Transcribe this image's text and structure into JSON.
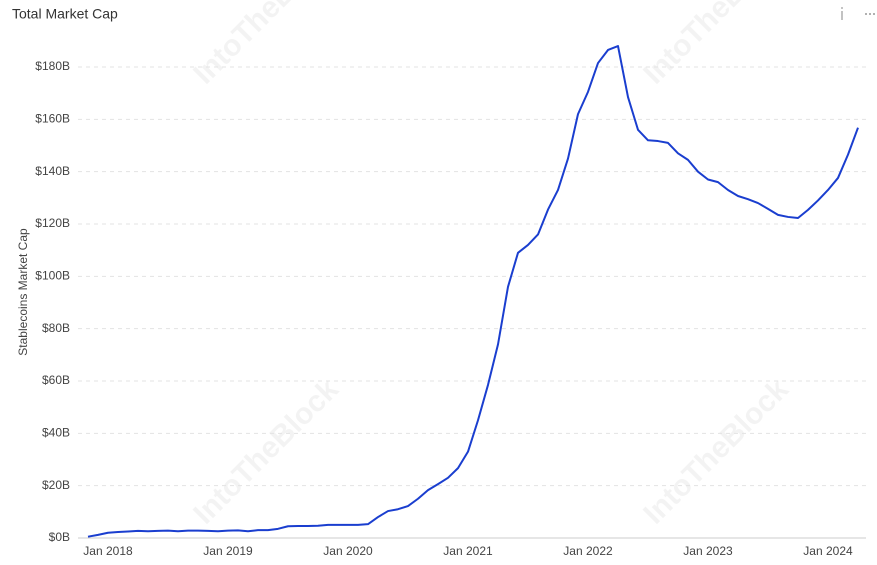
{
  "chart_data": {
    "type": "line",
    "title": "Total Market Cap",
    "y_label": "Stablecoins Market Cap",
    "watermark": "IntoTheBlock",
    "categories": [
      null,
      null,
      "Jan 2018",
      null,
      null,
      null,
      null,
      null,
      null,
      null,
      null,
      null,
      null,
      null,
      "Jan 2019",
      null,
      null,
      null,
      null,
      null,
      null,
      null,
      null,
      null,
      null,
      null,
      "Jan 2020",
      null,
      null,
      null,
      null,
      null,
      null,
      null,
      null,
      null,
      null,
      null,
      "Jan 2021",
      null,
      null,
      null,
      null,
      null,
      null,
      null,
      null,
      null,
      null,
      null,
      "Jan 2022",
      null,
      null,
      null,
      null,
      null,
      null,
      null,
      null,
      null,
      null,
      null,
      "Jan 2023",
      null,
      null,
      null,
      null,
      null,
      null,
      null,
      null,
      null,
      null,
      null,
      "Jan 2024",
      null,
      null,
      null
    ],
    "series": [
      {
        "name": "Stablecoins Market Cap",
        "color": "#1a3ecf",
        "values": [
          0.5,
          1.2,
          2,
          2.3,
          2.5,
          2.7,
          2.6,
          2.7,
          2.8,
          2.6,
          2.8,
          2.8,
          2.7,
          2.6,
          2.8,
          2.9,
          2.6,
          3,
          3,
          3.5,
          4.5,
          4.6,
          4.6,
          4.7,
          5,
          5,
          5,
          5,
          5.3,
          8,
          10.3,
          11,
          12.2,
          15,
          18.3,
          20.6,
          23,
          26.7,
          33,
          45,
          58.5,
          74,
          96,
          109,
          112,
          116,
          125.5,
          133,
          145,
          162,
          170.5,
          181.5,
          186.5,
          188,
          168.5,
          156,
          152,
          151.7,
          151,
          147,
          144.5,
          140,
          137,
          136,
          133,
          130.7,
          129.5,
          128,
          125.8,
          123.5,
          122.7,
          122.3,
          125.4,
          129,
          133,
          137.6,
          146.5,
          156.8
        ]
      }
    ],
    "ylim": [
      0,
      190
    ],
    "yticks": [
      {
        "value": 0,
        "label": "$0B"
      },
      {
        "value": 20,
        "label": "$20B"
      },
      {
        "value": 40,
        "label": "$40B"
      },
      {
        "value": 60,
        "label": "$60B"
      },
      {
        "value": 80,
        "label": "$80B"
      },
      {
        "value": 100,
        "label": "$100B"
      },
      {
        "value": 120,
        "label": "$120B"
      },
      {
        "value": 140,
        "label": "$140B"
      },
      {
        "value": 160,
        "label": "$160B"
      },
      {
        "value": 180,
        "label": "$180B"
      }
    ],
    "grid": true
  }
}
